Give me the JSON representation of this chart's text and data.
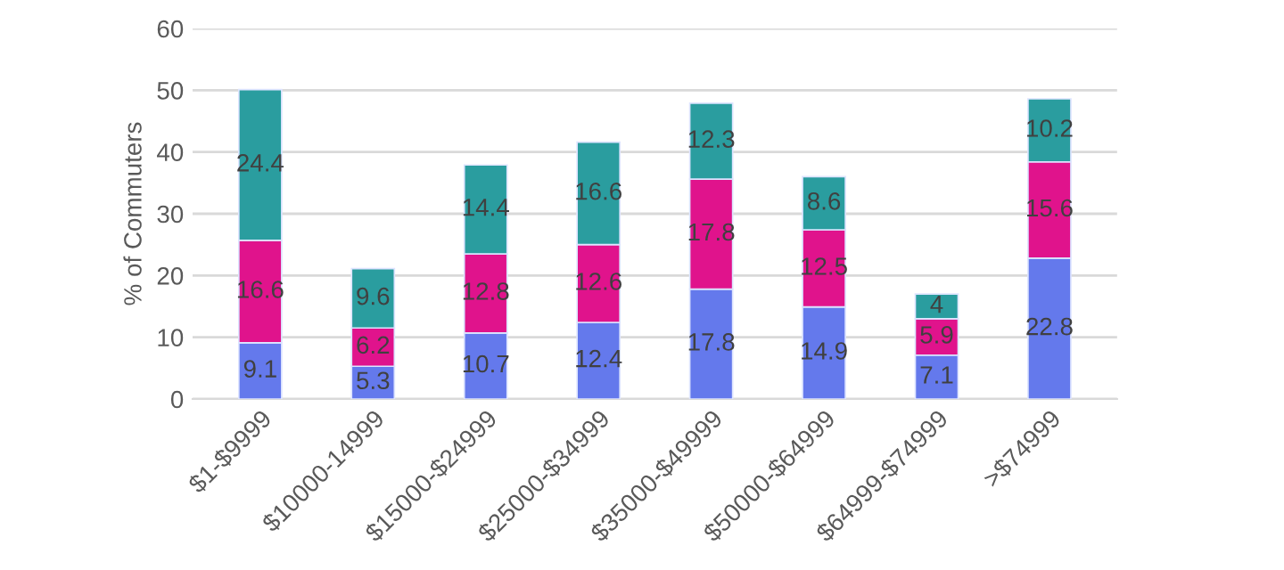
{
  "chart_data": {
    "type": "bar",
    "stacked": true,
    "ylabel": "% of Commuters",
    "categories": [
      "$1-$9999",
      "$10000-14999",
      "$15000-$24999",
      "$25000-$34999",
      "$35000-$49999",
      "$50000-$64999",
      "$64999-$74999",
      ">$74999"
    ],
    "series": [
      {
        "color": "#6479ec",
        "values": [
          9.1,
          5.3,
          10.7,
          12.4,
          17.8,
          14.9,
          7.1,
          22.8
        ]
      },
      {
        "color": "#e0138c",
        "values": [
          16.6,
          6.2,
          12.8,
          12.6,
          17.8,
          12.5,
          5.9,
          15.6
        ]
      },
      {
        "color": "#2a9d9f",
        "values": [
          24.4,
          9.6,
          14.4,
          16.6,
          12.3,
          8.6,
          4,
          10.2
        ]
      }
    ],
    "data_labels": true,
    "ylim": [
      0,
      60
    ],
    "yticks": [
      0,
      10,
      20,
      30,
      40,
      50,
      60
    ],
    "grid": "y",
    "legend": false
  }
}
